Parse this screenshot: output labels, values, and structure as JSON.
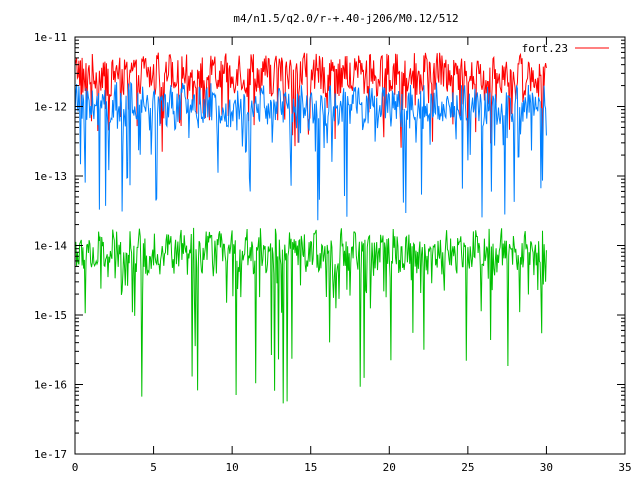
{
  "chart_data": {
    "type": "line",
    "title": "m4/n1.5/q2.0/r-+.40-j206/M0.12/512",
    "xlabel": "",
    "ylabel": "",
    "x_scale": "linear",
    "y_scale": "log",
    "xlim": [
      0,
      35
    ],
    "ylim": [
      1e-17,
      1e-11
    ],
    "x_ticks": [
      "0",
      "5",
      "10",
      "15",
      "20",
      "25",
      "30",
      "35"
    ],
    "y_ticks": [
      "1e-17",
      "1e-16",
      "1e-15",
      "1e-14",
      "1e-13",
      "1e-12",
      "1e-11"
    ],
    "grid": false,
    "legend_position": "top-right",
    "legend": [
      "fort.23"
    ],
    "series": [
      {
        "name": "fort.23",
        "color": "#ff0000",
        "x_range": [
          0,
          30
        ],
        "typical": 3e-12,
        "range": [
          2e-13,
          6e-12
        ]
      },
      {
        "color": "#0080ff",
        "x_range": [
          0,
          30
        ],
        "typical": 1e-12,
        "range": [
          2e-14,
          3e-12
        ]
      },
      {
        "color": "#00c000",
        "x_range": [
          0,
          30
        ],
        "typical": 8e-15,
        "range": [
          5e-17,
          2e-14
        ]
      }
    ]
  }
}
